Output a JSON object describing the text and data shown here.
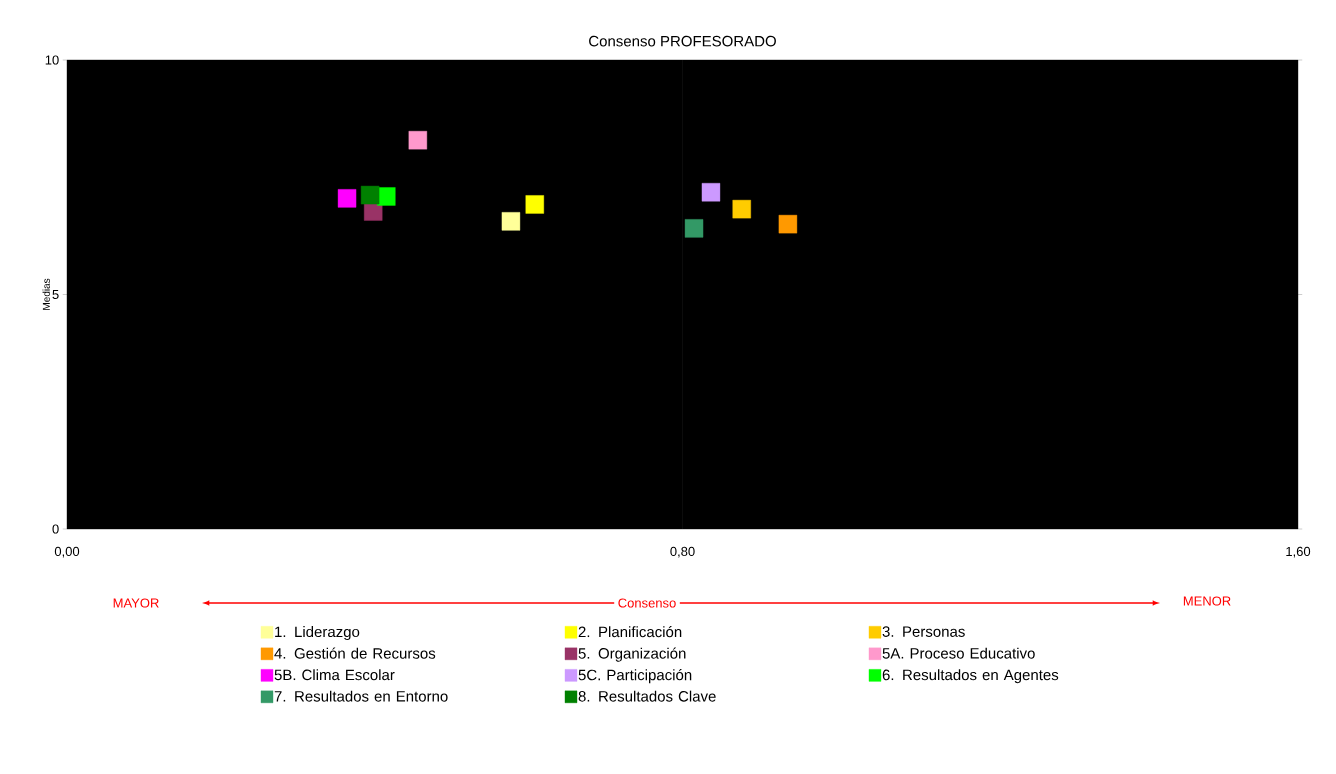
{
  "chart_data": {
    "type": "scatter",
    "title": "Consenso PROFESORADO",
    "xlabel": "Consenso",
    "ylabel": "Medias",
    "annotations": [
      "MAYOR",
      "MENOR"
    ],
    "xlim": [
      0,
      1.6
    ],
    "ylim": [
      0,
      10
    ],
    "xticks": [
      {
        "value": 0,
        "label": "0,00"
      },
      {
        "value": 0.8,
        "label": "0,80"
      },
      {
        "value": 1.6,
        "label": "1,60"
      }
    ],
    "yticks": [
      0,
      5,
      10
    ],
    "marker": "square",
    "legend": "bottom",
    "grid": false,
    "ref_lines": [
      {
        "axis": "x",
        "value": 0.8,
        "color": "#222222"
      }
    ],
    "series": [
      {
        "name": "1. Liderazgo",
        "color": "#ffff99",
        "x": [
          0.577
        ],
        "values": [
          6.56
        ]
      },
      {
        "name": "2. Planificación",
        "color": "#ffff00",
        "x": [
          0.608
        ],
        "values": [
          6.92
        ]
      },
      {
        "name": "3. Personas",
        "color": "#ffcc00",
        "x": [
          0.877
        ],
        "values": [
          6.82
        ]
      },
      {
        "name": "4. Gestión de Recursos",
        "color": "#ff9900",
        "x": [
          0.937
        ],
        "values": [
          6.5
        ]
      },
      {
        "name": "5. Organización",
        "color": "#993366",
        "x": [
          0.398
        ],
        "values": [
          6.77
        ]
      },
      {
        "name": "5A. Proceso Educativo",
        "color": "#ff99cc",
        "x": [
          0.456
        ],
        "values": [
          8.29
        ]
      },
      {
        "name": "5B. Clima Escolar",
        "color": "#ff00ff",
        "x": [
          0.364
        ],
        "values": [
          7.05
        ]
      },
      {
        "name": "5C. Participación",
        "color": "#cc99ff",
        "x": [
          0.837
        ],
        "values": [
          7.18
        ]
      },
      {
        "name": "6. Resultados en Agentes",
        "color": "#00ff00",
        "x": [
          0.415
        ],
        "values": [
          7.09
        ]
      },
      {
        "name": "7. Resultados en Entorno",
        "color": "#339966",
        "x": [
          0.815
        ],
        "values": [
          6.41
        ]
      },
      {
        "name": "8. Resultados Clave",
        "color": "#008000",
        "x": [
          0.394
        ],
        "values": [
          7.12
        ]
      }
    ]
  }
}
